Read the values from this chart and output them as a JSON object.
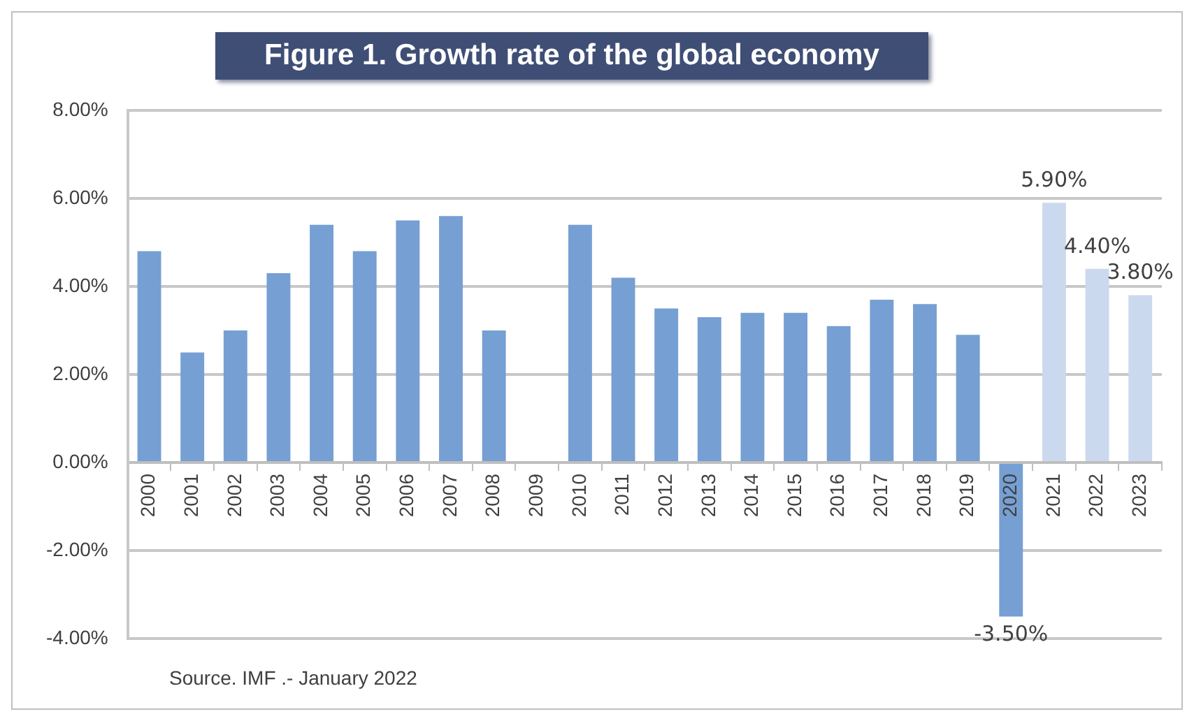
{
  "chart_data": {
    "type": "bar",
    "title": "Figure 1. Growth rate of the global economy",
    "categories": [
      "2000",
      "2001",
      "2002",
      "2003",
      "2004",
      "2005",
      "2006",
      "2007",
      "2008",
      "2009",
      "2010",
      "2011",
      "2012",
      "2013",
      "2014",
      "2015",
      "2016",
      "2017",
      "2018",
      "2019",
      "2020",
      "2021",
      "2022",
      "2023"
    ],
    "values": [
      4.8,
      2.5,
      3.0,
      4.3,
      5.4,
      4.8,
      5.5,
      5.6,
      3.0,
      0,
      5.4,
      4.2,
      3.5,
      3.3,
      3.4,
      3.4,
      3.1,
      3.7,
      3.6,
      2.9,
      -3.5,
      5.9,
      4.4,
      3.8
    ],
    "colors": [
      "#769fd3",
      "#769fd3",
      "#769fd3",
      "#769fd3",
      "#769fd3",
      "#769fd3",
      "#769fd3",
      "#769fd3",
      "#769fd3",
      "#769fd3",
      "#769fd3",
      "#769fd3",
      "#769fd3",
      "#769fd3",
      "#769fd3",
      "#769fd3",
      "#769fd3",
      "#769fd3",
      "#769fd3",
      "#769fd3",
      "#769fd3",
      "#cbd9ee",
      "#cbd9ee",
      "#cbd9ee"
    ],
    "value_labels": [
      null,
      null,
      null,
      null,
      null,
      null,
      null,
      null,
      null,
      null,
      null,
      null,
      null,
      null,
      null,
      null,
      null,
      null,
      null,
      null,
      "-3.50%",
      "5.90%",
      "4.40%",
      "3.80%"
    ],
    "ylim": [
      -4,
      8
    ],
    "yticks": [
      {
        "value": -4,
        "label": "-4.00%"
      },
      {
        "value": -2,
        "label": "-2.00%"
      },
      {
        "value": 0,
        "label": "0.00%"
      },
      {
        "value": 2,
        "label": "2.00%"
      },
      {
        "value": 4,
        "label": "4.00%"
      },
      {
        "value": 6,
        "label": "6.00%"
      },
      {
        "value": 8,
        "label": "8.00%"
      }
    ],
    "grid": "y",
    "annotations": [
      "Source.  IMF .- January 2022"
    ]
  }
}
